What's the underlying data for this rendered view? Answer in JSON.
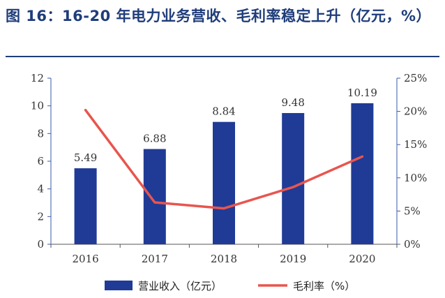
{
  "title": "图 16：16-20 年电力业务营收、毛利率稳定上升（亿元，%）",
  "chart_data": {
    "type": "bar+line",
    "categories": [
      "2016",
      "2017",
      "2018",
      "2019",
      "2020"
    ],
    "series": [
      {
        "name": "营业收入（亿元）",
        "type": "bar",
        "axis": "left",
        "values": [
          5.49,
          6.88,
          8.84,
          9.48,
          10.19
        ],
        "labels": [
          "5.49",
          "6.88",
          "8.84",
          "9.48",
          "10.19"
        ],
        "color": "#1f3b96"
      },
      {
        "name": "毛利率（%）",
        "type": "line",
        "axis": "right",
        "values": [
          20.2,
          6.3,
          5.4,
          8.6,
          13.2
        ],
        "color": "#e8554e"
      }
    ],
    "y_left": {
      "min": 0,
      "max": 12,
      "ticks": [
        0,
        2,
        4,
        6,
        8,
        10,
        12
      ],
      "tick_labels": [
        "0",
        "2",
        "4",
        "6",
        "8",
        "10",
        "12"
      ]
    },
    "y_right": {
      "min": 0,
      "max": 25,
      "ticks": [
        0,
        5,
        10,
        15,
        20,
        25
      ],
      "tick_labels": [
        "0%",
        "5%",
        "10%",
        "15%",
        "20%",
        "25%"
      ]
    },
    "grid": false,
    "legend": "bottom"
  }
}
